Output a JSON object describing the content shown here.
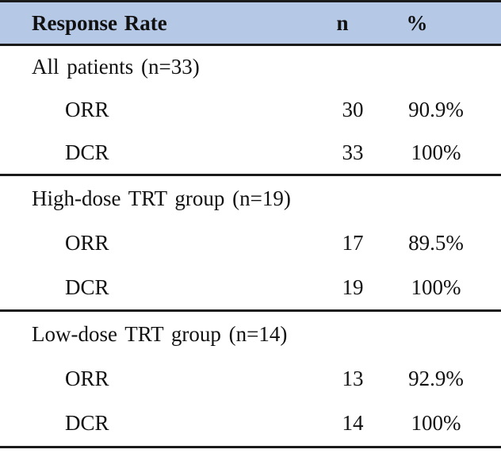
{
  "table": {
    "header": {
      "col1": "Response Rate",
      "col2": "n",
      "col3": "%"
    },
    "sections": [
      {
        "label": "All patients (n=33)",
        "rows": [
          {
            "label": "ORR",
            "n": "30",
            "pct": "90.9%"
          },
          {
            "label": "DCR",
            "n": "33",
            "pct": "100%"
          }
        ]
      },
      {
        "label": "High-dose TRT group (n=19)",
        "rows": [
          {
            "label": "ORR",
            "n": "17",
            "pct": "89.5%"
          },
          {
            "label": "DCR",
            "n": "19",
            "pct": "100%"
          }
        ]
      },
      {
        "label": "Low-dose TRT group (n=14)",
        "rows": [
          {
            "label": "ORR",
            "n": "13",
            "pct": "92.9%"
          },
          {
            "label": "DCR",
            "n": "14",
            "pct": "100%"
          }
        ]
      }
    ],
    "colors": {
      "header_bg": "#b5c8e6",
      "line": "#1b1b1b"
    }
  }
}
